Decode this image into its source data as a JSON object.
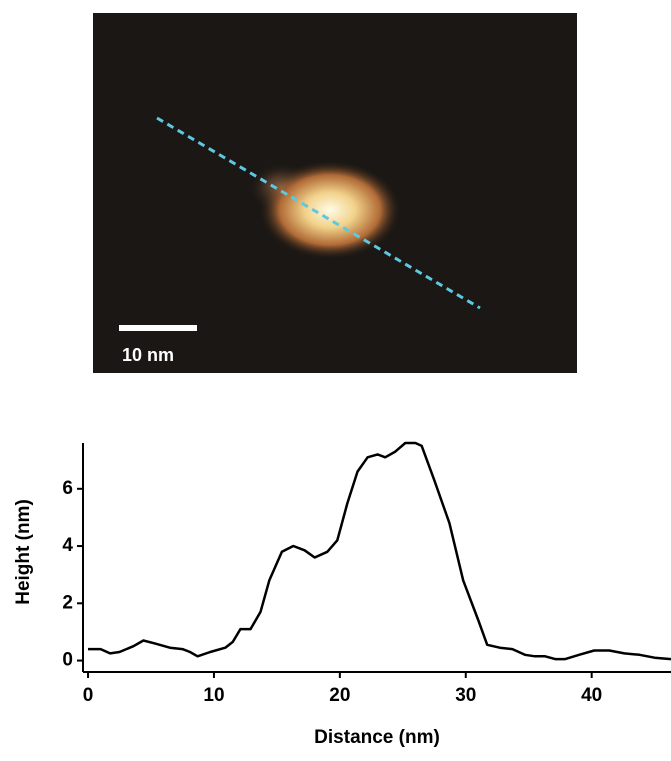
{
  "image": {
    "scale_bar_label": "10 nm"
  },
  "chart_data": {
    "type": "line",
    "x_label": "Distance (nm)",
    "y_label": "Height (nm)",
    "x": [
      0,
      1,
      1.75,
      2.5,
      3.6,
      4.4,
      5.3,
      6.5,
      7.5,
      8.1,
      8.7,
      9.7,
      10.9,
      11.5,
      12.1,
      12.9,
      13.7,
      14.4,
      15.4,
      16.3,
      17.2,
      18,
      19,
      19.8,
      20.6,
      21.4,
      22.2,
      23,
      23.6,
      24.4,
      25.2,
      26,
      26.5,
      27.5,
      28.7,
      29.8,
      31,
      31.7,
      32.7,
      33.7,
      34.7,
      35.5,
      36.3,
      37.1,
      37.9,
      39,
      40.2,
      41.4,
      42.6,
      43.8,
      45,
      46.3
    ],
    "values": [
      0.4,
      0.4,
      0.25,
      0.3,
      0.5,
      0.7,
      0.6,
      0.45,
      0.4,
      0.3,
      0.15,
      0.3,
      0.45,
      0.65,
      1.1,
      1.1,
      1.7,
      2.8,
      3.8,
      4.0,
      3.85,
      3.6,
      3.8,
      4.2,
      5.5,
      6.6,
      7.1,
      7.2,
      7.1,
      7.3,
      7.6,
      7.6,
      7.5,
      6.3,
      4.8,
      2.8,
      1.4,
      0.55,
      0.45,
      0.4,
      0.2,
      0.15,
      0.15,
      0.05,
      0.05,
      0.2,
      0.35,
      0.35,
      0.25,
      0.2,
      0.1,
      0.05
    ],
    "color": "#000000",
    "xlim": [
      -0.4,
      46.3
    ],
    "ylim": [
      -0.4,
      7.6
    ],
    "xticks": [
      0,
      10,
      20,
      30,
      40
    ],
    "yticks": [
      0,
      2,
      4,
      6
    ]
  }
}
